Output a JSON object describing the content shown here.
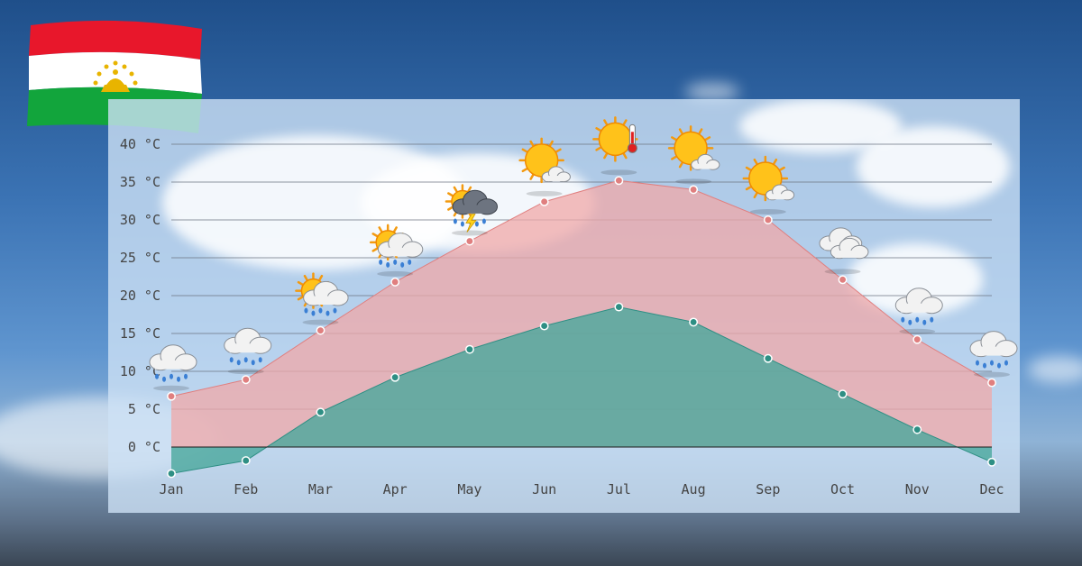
{
  "chart_data": {
    "type": "area",
    "categories": [
      "Jan",
      "Feb",
      "Mar",
      "Apr",
      "May",
      "Jun",
      "Jul",
      "Aug",
      "Sep",
      "Oct",
      "Nov",
      "Dec"
    ],
    "y_ticks": [
      "0 °C",
      "5 °C",
      "10 °C",
      "15 °C",
      "20 °C",
      "25 °C",
      "30 °C",
      "35 °C",
      "40 °C"
    ],
    "ylim": [
      -4,
      41
    ],
    "grid": true,
    "series": [
      {
        "values": [
          6.7,
          8.9,
          15.4,
          21.8,
          27.2,
          32.4,
          35.2,
          34.0,
          30.0,
          22.1,
          14.2,
          8.5
        ]
      },
      {
        "values": [
          -3.5,
          -1.8,
          4.6,
          9.2,
          12.9,
          16.0,
          18.5,
          16.5,
          11.7,
          7.0,
          2.3,
          -2.0
        ]
      }
    ],
    "weather_icons": [
      "rain",
      "rain",
      "sun-rain",
      "sun-rain",
      "thunderstorm",
      "sun-cloud",
      "hot-sun",
      "sun-cloud",
      "sun-cloud",
      "clouds",
      "rain",
      "rain"
    ],
    "colors": {
      "high_fill": "#f0a8a8",
      "high_line": "#e07f7f",
      "low_fill": "#4aa89c",
      "low_line": "#2e8f84"
    }
  },
  "flag": {
    "icon": "tajikistan-flag",
    "colors": [
      "#e8172b",
      "#ffffff",
      "#12a53c",
      "#e8b400"
    ]
  }
}
